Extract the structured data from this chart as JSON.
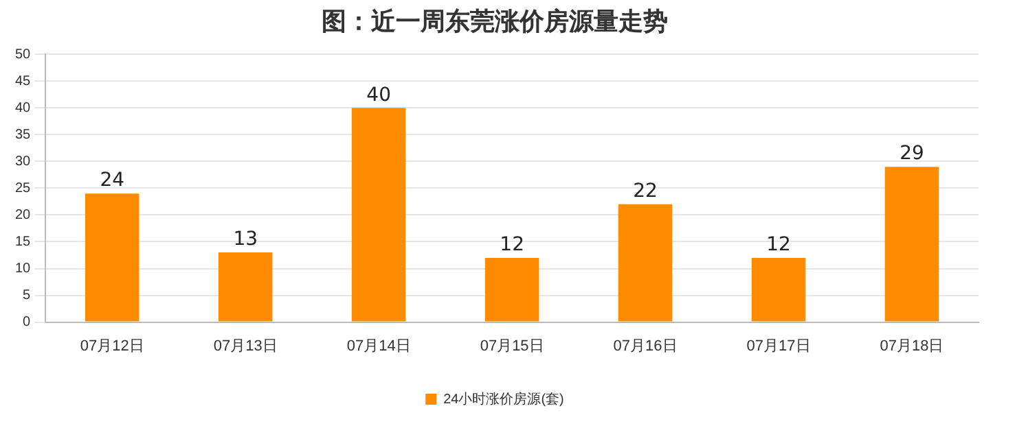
{
  "chart_data": {
    "type": "bar",
    "title": "图：近一周东莞涨价房源量走势",
    "categories": [
      "07月12日",
      "07月13日",
      "07月14日",
      "07月15日",
      "07月16日",
      "07月17日",
      "07月18日"
    ],
    "series": [
      {
        "name": "24小时涨价房源(套)",
        "color": "#ff8c00",
        "values": [
          24,
          13,
          40,
          12,
          22,
          12,
          29
        ]
      }
    ],
    "ylim": [
      0,
      50
    ],
    "yticks": [
      0,
      5,
      10,
      15,
      20,
      25,
      30,
      35,
      40,
      45,
      50
    ],
    "grid": "y",
    "legend": "bottom",
    "data_labels": true
  }
}
